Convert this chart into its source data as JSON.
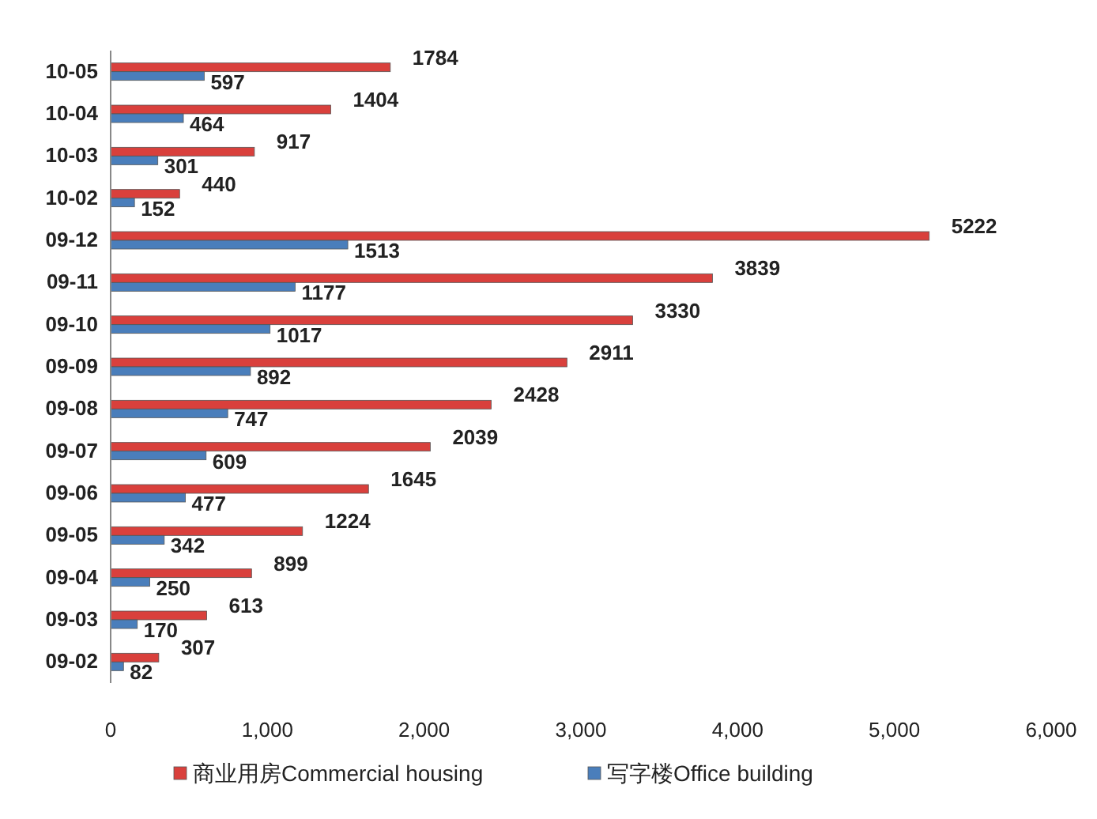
{
  "chart_data": {
    "type": "bar",
    "orientation": "horizontal",
    "categories": [
      "10-05",
      "10-04",
      "10-03",
      "10-02",
      "09-12",
      "09-11",
      "09-10",
      "09-09",
      "09-08",
      "09-07",
      "09-06",
      "09-05",
      "09-04",
      "09-03",
      "09-02"
    ],
    "series": [
      {
        "name": "商业用房Commercial housing",
        "color": "#d9403c",
        "values": [
          1784,
          1404,
          917,
          440,
          5222,
          3839,
          3330,
          2911,
          2428,
          2039,
          1645,
          1224,
          899,
          613,
          307
        ]
      },
      {
        "name": "写字楼Office building",
        "color": "#4a7ebb",
        "values": [
          597,
          464,
          301,
          152,
          1513,
          1177,
          1017,
          892,
          747,
          609,
          477,
          342,
          250,
          170,
          82
        ]
      }
    ],
    "xlim": [
      0,
      6000
    ],
    "xticks": [
      0,
      {
        "value": 1000,
        "label": "1,000"
      },
      {
        "value": 2000,
        "label": "2,000"
      },
      {
        "value": 3000,
        "label": "3,000"
      },
      {
        "value": 4000,
        "label": "4,000"
      },
      {
        "value": 5000,
        "label": "5,000"
      },
      {
        "value": 6000,
        "label": "6,000"
      }
    ],
    "data_labels": true,
    "legend": "bottom"
  }
}
